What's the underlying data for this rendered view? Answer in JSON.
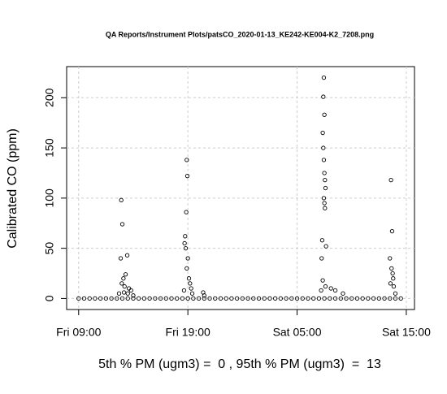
{
  "chart_data": {
    "type": "scatter",
    "title": "QA Reports/Instrument Plots/patsCO_2020-01-13_KE242-KE004-K2_7208.png",
    "y_label": "Calibrated CO (ppm)",
    "x_label": "5th % PM (ugm3) =  0 , 95th % PM (ugm3)  =  13",
    "xlim": [
      7.9,
      39.75
    ],
    "ylim": [
      -11,
      231
    ],
    "xticks": [
      {
        "value": 9,
        "label": "Fri 09:00"
      },
      {
        "value": 19,
        "label": "Fri 19:00"
      },
      {
        "value": 29,
        "label": "Sat 05:00"
      },
      {
        "value": 39,
        "label": "Sat 15:00"
      }
    ],
    "yticks": [
      0,
      50,
      100,
      150,
      200
    ],
    "grid": true,
    "color": "#000000",
    "series": [
      {
        "x": [
          9,
          9.5,
          10,
          10.5,
          11,
          11.5,
          12,
          12.5,
          13,
          13.5,
          14,
          14.5,
          15,
          15.5,
          16,
          16.5,
          17,
          17.5,
          18,
          18.5,
          19,
          19.5,
          20,
          20.5,
          21,
          21.5,
          22,
          22.5,
          23,
          23.5,
          24,
          24.5,
          25,
          25.5,
          26,
          26.5,
          27,
          27.5,
          28,
          28.5,
          29,
          29.5,
          30,
          30.5,
          31,
          31.5,
          32,
          32.5,
          33,
          33.5,
          34,
          34.5,
          35,
          35.5,
          36,
          36.5,
          37,
          37.5,
          38,
          38.5,
          12.9,
          13.0,
          12.85,
          13.45,
          13.3,
          13.1,
          12.95,
          13.2,
          13.6,
          13.8,
          13.5,
          14.0,
          12.7,
          13.15,
          18.9,
          18.95,
          18.85,
          18.75,
          18.7,
          18.8,
          19.0,
          18.9,
          19.1,
          19.2,
          19.3,
          18.65,
          19.4,
          20.4,
          20.5,
          31.45,
          31.4,
          31.5,
          31.35,
          31.4,
          31.45,
          31.5,
          31.55,
          31.6,
          31.45,
          31.5,
          31.55,
          31.3,
          31.65,
          31.25,
          31.35,
          31.6,
          32.1,
          32.5,
          33.2,
          31.2,
          37.6,
          37.7,
          37.5,
          37.65,
          37.75,
          37.8,
          37.85,
          38.0,
          37.55
        ],
        "values": [
          0,
          0,
          0,
          0,
          0,
          0,
          0,
          0,
          0,
          0,
          0,
          0,
          0,
          0,
          0,
          0,
          0,
          0,
          0,
          0,
          0,
          0,
          0,
          0,
          0,
          0,
          0,
          0,
          0,
          0,
          0,
          0,
          0,
          0,
          0,
          0,
          0,
          0,
          0,
          0,
          0,
          0,
          0,
          0,
          0,
          0,
          0,
          0,
          0,
          0,
          0,
          0,
          0,
          0,
          0,
          0,
          0,
          0,
          0,
          0,
          98,
          74,
          40,
          43,
          24,
          20,
          15,
          12,
          10,
          8,
          5,
          3,
          5,
          6,
          138,
          122,
          86,
          62,
          55,
          50,
          40,
          30,
          20,
          15,
          10,
          8,
          5,
          6,
          3,
          220,
          201,
          183,
          165,
          150,
          138,
          125,
          118,
          110,
          100,
          95,
          90,
          58,
          52,
          40,
          18,
          12,
          10,
          8,
          5,
          8,
          118,
          67,
          40,
          30,
          25,
          20,
          12,
          5,
          15
        ]
      }
    ]
  }
}
